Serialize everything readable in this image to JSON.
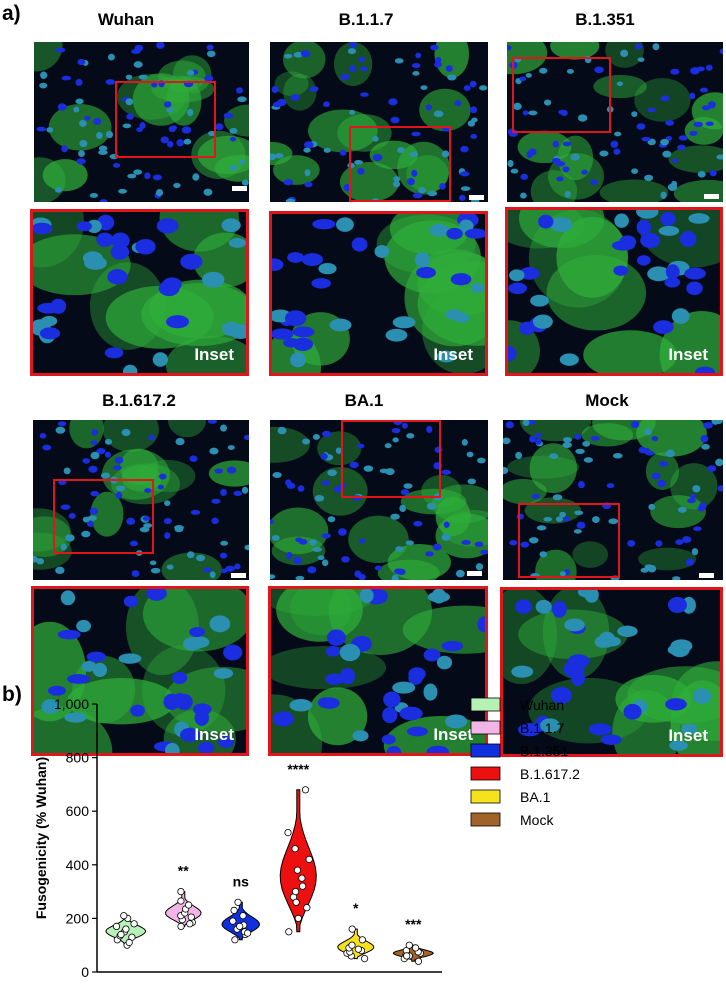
{
  "panel_a": {
    "letter": "a)",
    "inset_label": "Inset",
    "titles": [
      "Wuhan",
      "B.1.1.7",
      "B.1.351",
      "B.1.617.2",
      "BA.1",
      "Mock"
    ]
  },
  "panel_b": {
    "letter": "b)"
  },
  "chart_data": {
    "type": "violin",
    "ylabel": "Fusogenicity (% Wuhan)",
    "ylim": [
      0,
      1000
    ],
    "yticks": [
      "0",
      "200",
      "400",
      "600",
      "800",
      "1,000"
    ],
    "categories": [
      "Wuhan",
      "B.1.1.7",
      "B.1.351",
      "B.1.617.2",
      "BA.1",
      "Mock"
    ],
    "series": [
      {
        "name": "Wuhan",
        "color": "#b6f2b6",
        "significance": "",
        "values": [
          100,
          120,
          135,
          150,
          160,
          170,
          180,
          200,
          210,
          140,
          130,
          110
        ]
      },
      {
        "name": "B.1.1.7",
        "color": "#f2b6e6",
        "significance": "**",
        "values": [
          170,
          185,
          195,
          210,
          220,
          235,
          250,
          265,
          300,
          205,
          180
        ]
      },
      {
        "name": "B.1.351",
        "color": "#1030e0",
        "significance": "ns",
        "values": [
          120,
          140,
          150,
          160,
          175,
          190,
          210,
          230,
          260,
          170,
          145
        ]
      },
      {
        "name": "B.1.617.2",
        "color": "#ee1010",
        "significance": "****",
        "values": [
          150,
          200,
          240,
          280,
          320,
          350,
          380,
          420,
          460,
          520,
          680,
          300,
          260
        ]
      },
      {
        "name": "BA.1",
        "color": "#f6e11e",
        "significance": "*",
        "values": [
          50,
          60,
          70,
          75,
          80,
          90,
          100,
          120,
          160,
          85
        ]
      },
      {
        "name": "Mock",
        "color": "#a0642a",
        "significance": "***",
        "values": [
          40,
          50,
          60,
          65,
          70,
          75,
          80,
          90,
          100,
          60
        ]
      }
    ],
    "legend_position": "right"
  }
}
